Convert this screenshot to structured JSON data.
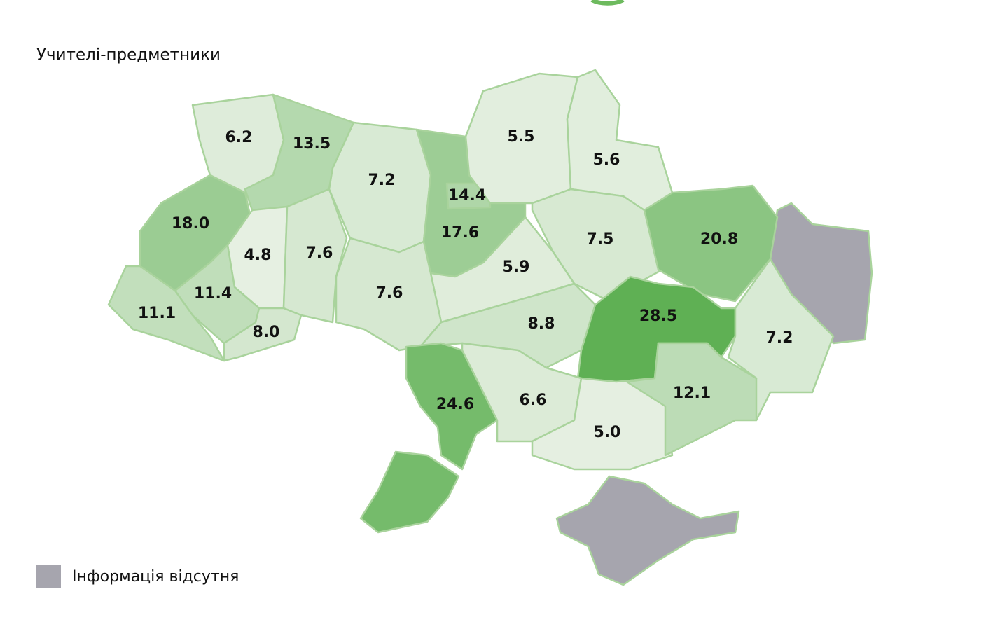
{
  "title": "Учителі-предметники",
  "regions": [
    {
      "value": 6.2,
      "label": "6.2"
    },
    {
      "value": 13.5,
      "label": "13.5"
    },
    {
      "value": 18,
      "label": "18.0"
    },
    {
      "value": 4.8,
      "label": "4.8"
    },
    {
      "value": 7.6,
      "label": "7.6"
    },
    {
      "value": 7.2,
      "label": "7.2"
    },
    {
      "value": 17.6,
      "label": "17.6"
    },
    {
      "value": 14.4,
      "label": "14.4"
    },
    {
      "value": 5.5,
      "label": "5.5"
    },
    {
      "value": 5.6,
      "label": "5.6"
    },
    {
      "value": 7.5,
      "label": "7.5"
    },
    {
      "value": 20.8,
      "label": "20.8"
    },
    {
      "value": 5.9,
      "label": "5.9"
    },
    {
      "value": 7.6,
      "label": "7.6"
    },
    {
      "value": 11.4,
      "label": "11.4"
    },
    {
      "value": 11.1,
      "label": "11.1"
    },
    {
      "value": 8,
      "label": "8.0"
    },
    {
      "value": 8.8,
      "label": "8.8"
    },
    {
      "value": 28.5,
      "label": "28.5"
    },
    {
      "value": 7.2,
      "label": "7.2"
    },
    {
      "value": 24.6,
      "label": "24.6"
    },
    {
      "value": 6.6,
      "label": "6.6"
    },
    {
      "value": 5,
      "label": "5.0"
    },
    {
      "value": 12.1,
      "label": "12.1"
    }
  ],
  "legend": {
    "no_data": "Інформація відсутня"
  }
}
